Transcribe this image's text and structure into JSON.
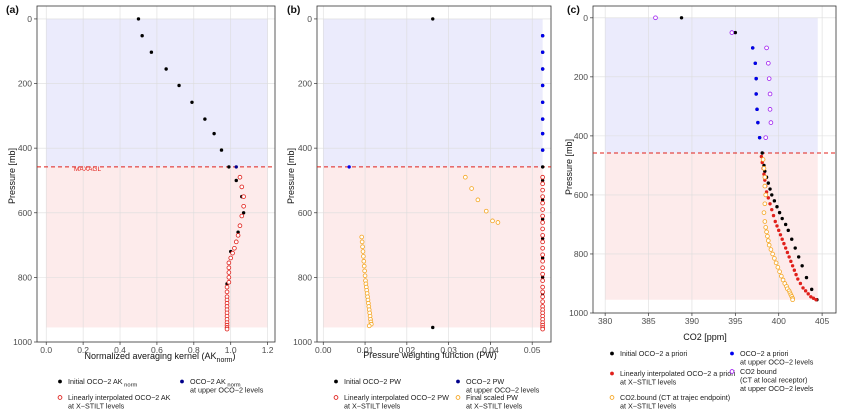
{
  "panels": [
    {
      "label": "(a)",
      "xlabel": "Normalized averaging kernel (AK",
      "xlabel_sub": "norm",
      "xlabel_end": ")",
      "ylabel": "Pressure [mb]",
      "annotation": "MAXAGL"
    },
    {
      "label": "(b)",
      "xlabel": "Pressure weighting function (PW)",
      "ylabel": "Pressure [mb]"
    },
    {
      "label": "(c)",
      "xlabel": "CO2 [ppm]",
      "ylabel": "Pressure [mb]"
    }
  ],
  "legends": [
    {
      "items": [
        {
          "lines": [
            "Initial OCO−2 AK"
          ],
          "sub": "norm",
          "color": "#000000",
          "hollow": false
        },
        {
          "lines": [
            "OCO−2 AK",
            "at upper OCO−2 levels"
          ],
          "sub": "norm",
          "color": "#00008b",
          "hollow": false
        },
        {
          "lines": [
            "Linearly interpolated OCO−2 AK",
            "at X−STILT levels"
          ],
          "color": "#e0201b",
          "hollow": true
        }
      ]
    },
    {
      "items": [
        {
          "lines": [
            "Initial OCO−2 PW"
          ],
          "color": "#000000",
          "hollow": false
        },
        {
          "lines": [
            "OCO−2 PW",
            "at upper OCO−2 levels"
          ],
          "color": "#00008b",
          "hollow": false
        },
        {
          "lines": [
            "Linearly interpolated OCO−2 PW",
            "at X−STILT levels"
          ],
          "color": "#e0201b",
          "hollow": true
        },
        {
          "lines": [
            "Final scaled PW",
            "at X−STILT levels"
          ],
          "color": "#f5a623",
          "hollow": true
        }
      ]
    },
    {
      "items": [
        {
          "lines": [
            "Initial OCO−2 a priori"
          ],
          "color": "#000000",
          "hollow": false
        },
        {
          "lines": [
            "OCO−2 a priori",
            "at upper OCO−2 levels"
          ],
          "color": "#0000ee",
          "hollow": false
        },
        {
          "lines": [
            "Linearly interpolated OCO−2 a priori",
            "at X−STILT levels"
          ],
          "color": "#e0201b",
          "hollow": false
        },
        {
          "lines": [
            "CO2 bound",
            "(CT at local receptor)",
            "at upper OCO−2 levels"
          ],
          "color": "#a020f0",
          "hollow": true
        },
        {
          "lines": [
            "CO2.bound (CT at trajec endpoint)",
            "at X−STILT levels"
          ],
          "color": "#f5a623",
          "hollow": true
        }
      ]
    }
  ],
  "colors": {
    "upper_band": "#ebebfc",
    "lower_band": "#fdebeb",
    "maxagl_line": "#e0201b",
    "grid": "#dcdcdc"
  },
  "chart_data": [
    {
      "type": "scatter",
      "title": "",
      "xlabel": "Normalized averaging kernel (AKnorm)",
      "ylabel": "Pressure [mb]",
      "xlim": [
        -0.05,
        1.24
      ],
      "ylim": [
        1000,
        -40
      ],
      "y_reversed": true,
      "xticks": [
        0,
        0.2,
        0.4,
        0.6,
        0.8,
        1,
        1.2
      ],
      "xtick_labels": [
        "0.0",
        "0.2",
        "0.4",
        "0.6",
        "0.8",
        "1.0",
        "1.2"
      ],
      "yticks": [
        0,
        200,
        400,
        600,
        800,
        1000
      ],
      "upper_band": [
        0,
        458
      ],
      "lower_band": [
        458,
        955
      ],
      "maxagl_pressure": 458,
      "series": [
        {
          "name": "Initial OCO−2 AK norm",
          "color": "#000000",
          "hollow": false,
          "x": [
            0.5,
            0.52,
            0.57,
            0.65,
            0.72,
            0.79,
            0.86,
            0.91,
            0.95,
            0.99,
            1.03,
            1.06,
            1.07,
            1.04,
            1.0,
            0.99,
            0.98,
            0.98,
            0.98,
            0.98
          ],
          "y": [
            0,
            52,
            103,
            155,
            206,
            258,
            310,
            355,
            406,
            458,
            500,
            550,
            600,
            660,
            720,
            770,
            820,
            870,
            910,
            955
          ]
        },
        {
          "name": "OCO−2 AK norm at upper OCO−2 levels",
          "color": "#00008b",
          "hollow": false,
          "x": [
            1.03
          ],
          "y": [
            458
          ]
        },
        {
          "name": "Linearly interpolated OCO−2 AK at X−STILT levels",
          "color": "#e0201b",
          "hollow": true,
          "x": [
            1.05,
            1.06,
            1.07,
            1.07,
            1.06,
            1.05,
            1.04,
            1.03,
            1.02,
            1.01,
            1.0,
            0.99,
            0.99,
            0.99,
            0.99,
            0.99,
            0.98,
            0.98,
            0.98,
            0.98,
            0.98,
            0.98,
            0.98,
            0.98,
            0.98,
            0.98,
            0.98,
            0.98,
            0.98,
            0.98
          ],
          "y": [
            490,
            520,
            550,
            580,
            610,
            640,
            670,
            690,
            710,
            725,
            740,
            755,
            770,
            785,
            800,
            815,
            830,
            845,
            860,
            870,
            880,
            890,
            900,
            910,
            920,
            930,
            940,
            948,
            955,
            960
          ]
        }
      ]
    },
    {
      "type": "scatter",
      "title": "",
      "xlabel": "Pressure weighting function (PW)",
      "ylabel": "Pressure [mb]",
      "xlim": [
        -0.0015,
        0.0545
      ],
      "ylim": [
        1000,
        -40
      ],
      "y_reversed": true,
      "xticks": [
        0,
        0.01,
        0.02,
        0.03,
        0.04,
        0.05
      ],
      "xtick_labels": [
        "0.00",
        "0.01",
        "0.02",
        "0.03",
        "0.04",
        "0.05"
      ],
      "yticks": [
        0,
        200,
        400,
        600,
        800,
        1000
      ],
      "upper_band": [
        0,
        458
      ],
      "lower_band": [
        458,
        955
      ],
      "maxagl_pressure": 458,
      "series": [
        {
          "name": "Initial OCO−2 PW",
          "color": "#000000",
          "hollow": false,
          "x": [
            0.0262,
            0.0525,
            0.0525,
            0.0525,
            0.0525,
            0.0525,
            0.0525,
            0.0525,
            0.0525,
            0.0525,
            0.0525,
            0.0525,
            0.0525,
            0.0525,
            0.0525,
            0.0525,
            0.0525,
            0.0525,
            0.0525,
            0.0262
          ],
          "y": [
            0,
            52,
            103,
            155,
            206,
            258,
            310,
            355,
            406,
            458,
            500,
            560,
            620,
            680,
            740,
            800,
            850,
            900,
            955,
            955
          ]
        },
        {
          "name": "OCO−2 PW at upper OCO−2 levels",
          "color": "#0000ee",
          "hollow": false,
          "x": [
            0.0525,
            0.0525,
            0.0525,
            0.0525,
            0.0525,
            0.0525,
            0.0525,
            0.0525,
            0.0062
          ],
          "y": [
            52,
            103,
            155,
            206,
            258,
            310,
            355,
            406,
            458
          ]
        },
        {
          "name": "Linearly interpolated OCO−2 PW at X−STILT levels",
          "color": "#e0201b",
          "hollow": true,
          "x": [
            0.0525,
            0.0525,
            0.0525,
            0.0525,
            0.0525,
            0.0525,
            0.0525,
            0.0525,
            0.0525,
            0.0525,
            0.0525,
            0.0525,
            0.0525,
            0.0525,
            0.0525,
            0.0525,
            0.0525,
            0.0525,
            0.0525,
            0.0525,
            0.0525,
            0.0525,
            0.0525,
            0.0525,
            0.0525,
            0.0525,
            0.0525,
            0.0525,
            0.0525,
            0.0525
          ],
          "y": [
            490,
            510,
            530,
            550,
            570,
            590,
            610,
            630,
            650,
            670,
            690,
            710,
            730,
            750,
            770,
            790,
            810,
            830,
            845,
            860,
            875,
            890,
            900,
            910,
            920,
            930,
            940,
            948,
            955,
            960
          ]
        },
        {
          "name": "Final scaled PW at X−STILT levels",
          "color": "#f5a623",
          "hollow": true,
          "x": [
            0.034,
            0.0355,
            0.037,
            0.039,
            0.0405,
            0.0418,
            0.0092,
            0.0093,
            0.0094,
            0.0095,
            0.0096,
            0.0097,
            0.0098,
            0.0099,
            0.01,
            0.0101,
            0.0102,
            0.0103,
            0.0104,
            0.0105,
            0.0106,
            0.0107,
            0.0108,
            0.0109,
            0.011,
            0.0111,
            0.0112,
            0.0113,
            0.0114,
            0.0115,
            0.011
          ],
          "y": [
            490,
            525,
            560,
            595,
            625,
            630,
            675,
            690,
            705,
            720,
            735,
            750,
            765,
            780,
            795,
            810,
            820,
            830,
            840,
            850,
            860,
            870,
            880,
            890,
            900,
            910,
            920,
            930,
            938,
            945,
            950
          ]
        }
      ]
    },
    {
      "type": "scatter",
      "title": "",
      "xlabel": "CO2 [ppm]",
      "ylabel": "Pressure [mb]",
      "xlim": [
        378.6,
        406.6
      ],
      "ylim": [
        1000,
        -40
      ],
      "y_reversed": true,
      "xticks": [
        380,
        385,
        390,
        395,
        400,
        405
      ],
      "xtick_labels": [
        "380",
        "385",
        "390",
        "395",
        "400",
        "405"
      ],
      "yticks": [
        0,
        200,
        400,
        600,
        800,
        1000
      ],
      "upper_band": [
        0,
        458
      ],
      "lower_band": [
        458,
        955
      ],
      "maxagl_pressure": 458,
      "series": [
        {
          "name": "Initial OCO−2 a priori",
          "color": "#000000",
          "hollow": false,
          "x": [
            388.8,
            395.0,
            397.0,
            397.3,
            397.4,
            397.4,
            397.5,
            397.6,
            397.8,
            398.1,
            398.2,
            398.3,
            398.4,
            398.6,
            398.8,
            399.0,
            399.2,
            399.5,
            399.8,
            400.1,
            400.4,
            400.8,
            401.1,
            401.5,
            401.9,
            402.3,
            402.7,
            403.2,
            403.8,
            404.4
          ],
          "y": [
            0,
            50,
            102,
            154,
            206,
            258,
            310,
            355,
            406,
            458,
            480,
            500,
            520,
            540,
            560,
            580,
            600,
            620,
            640,
            660,
            680,
            700,
            720,
            750,
            780,
            810,
            840,
            880,
            920,
            955
          ]
        },
        {
          "name": "OCO−2 a priori at upper OCO−2 levels",
          "color": "#0000ee",
          "hollow": false,
          "x": [
            397.0,
            397.3,
            397.4,
            397.4,
            397.5,
            397.6,
            397.8
          ],
          "y": [
            102,
            154,
            206,
            258,
            310,
            355,
            406
          ]
        },
        {
          "name": "Linearly interpolated OCO−2 a priori at X−STILT levels",
          "color": "#e0201b",
          "hollow": false,
          "x": [
            398.0,
            398.1,
            398.2,
            398.3,
            398.4,
            398.5,
            398.6,
            398.8,
            399.0,
            399.2,
            399.4,
            399.6,
            399.8,
            400.0,
            400.2,
            400.4,
            400.6,
            400.8,
            401.0,
            401.2,
            401.4,
            401.6,
            401.8,
            402.0,
            402.2,
            402.5,
            402.8,
            403.1,
            403.4,
            403.7,
            404.0,
            404.3
          ],
          "y": [
            470,
            490,
            510,
            530,
            550,
            570,
            590,
            610,
            630,
            650,
            670,
            690,
            705,
            720,
            735,
            750,
            765,
            780,
            795,
            810,
            825,
            840,
            855,
            870,
            885,
            900,
            915,
            925,
            935,
            945,
            950,
            955
          ]
        },
        {
          "name": "CO2 bound (CT at local receptor) at upper OCO−2 levels",
          "color": "#a020f0",
          "hollow": true,
          "x": [
            385.8,
            394.6,
            398.6,
            398.8,
            398.9,
            399.0,
            399.0,
            399.1,
            398.5
          ],
          "y": [
            0,
            50,
            102,
            154,
            206,
            258,
            310,
            355,
            406
          ]
        },
        {
          "name": "CO2.bound (CT at trajec endpoint) at X−STILT levels",
          "color": "#f5a623",
          "hollow": true,
          "x": [
            398.2,
            398.3,
            398.4,
            398.4,
            398.5,
            398.4,
            398.3,
            398.4,
            398.5,
            398.6,
            398.7,
            398.8,
            398.9,
            399.1,
            399.3,
            399.5,
            399.7,
            399.9,
            400.1,
            400.3,
            400.5,
            400.7,
            400.9,
            401.0,
            401.2,
            401.3,
            401.4,
            401.5,
            401.6,
            401.6
          ],
          "y": [
            480,
            510,
            540,
            570,
            600,
            630,
            660,
            690,
            710,
            725,
            740,
            755,
            770,
            785,
            800,
            815,
            830,
            845,
            860,
            875,
            888,
            900,
            910,
            918,
            925,
            932,
            938,
            944,
            950,
            955
          ]
        }
      ]
    }
  ]
}
